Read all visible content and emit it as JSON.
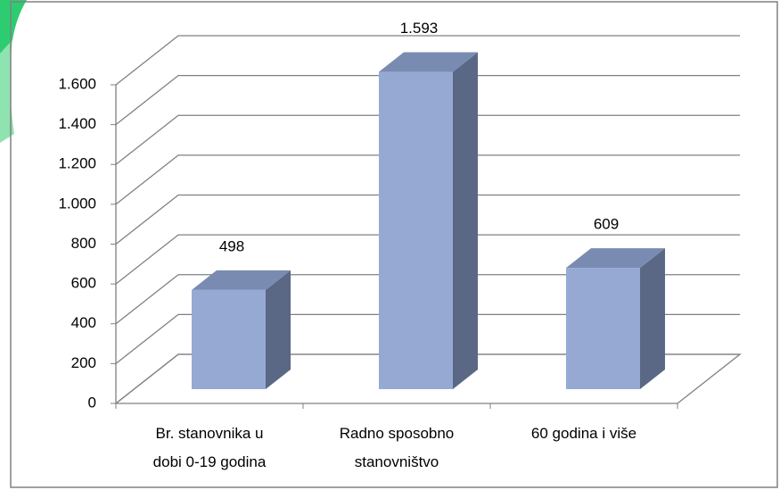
{
  "chart_data": {
    "type": "bar3d",
    "categories": [
      [
        "Br. stanovnika u",
        "dobi 0-19 godina"
      ],
      [
        "Radno sposobno",
        "stanovništvo"
      ],
      [
        "60  godina i više"
      ]
    ],
    "values": [
      498,
      1593,
      609
    ],
    "value_labels": [
      "498",
      "1.593",
      "609"
    ],
    "color": "#95a9d3",
    "ylim": [
      0,
      1600
    ],
    "yticks": [
      0,
      200,
      400,
      600,
      800,
      {
        "value": 1000,
        "label": "1.000"
      },
      {
        "value": 1200,
        "label": "1.200"
      },
      {
        "value": 1400,
        "label": "1.400"
      },
      {
        "value": 1600,
        "label": "1.600"
      }
    ],
    "grid": true
  }
}
